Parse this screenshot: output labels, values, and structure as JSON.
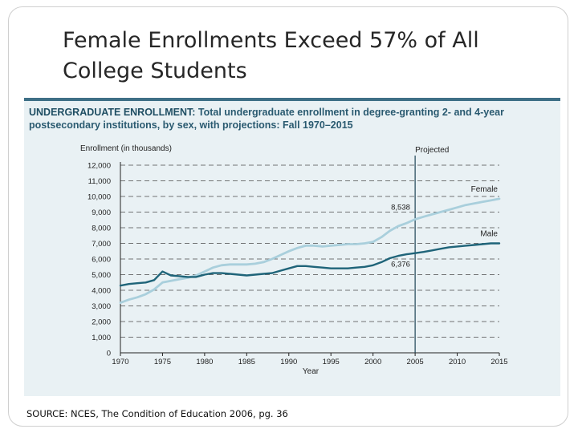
{
  "slide": {
    "title": "Female Enrollments Exceed 57% of All College Students",
    "source": "SOURCE: NCES, The Condition of Education 2006, pg. 36"
  },
  "colors": {
    "female": "#a9cfdc",
    "male": "#1f6479",
    "panel": "#e9f1f4",
    "heading": "#2a5a70"
  },
  "chart_data": {
    "type": "line",
    "heading_lead": "UNDERGRADUATE ENROLLMENT:",
    "heading_rest": "Total undergraduate enrollment in degree-granting 2- and 4-year postsecondary institutions, by sex, with projections: Fall 1970–2015",
    "ylabel": "Enrollment (in thousands)",
    "xlabel": "Year",
    "ylim": [
      0,
      12000
    ],
    "xlim": [
      1970,
      2015
    ],
    "x_ticks": [
      "1970",
      "1975",
      "1980",
      "1985",
      "1990",
      "1995",
      "2000",
      "2005",
      "2010",
      "2015"
    ],
    "y_ticks": [
      "0",
      "1,000",
      "2,000",
      "3,000",
      "4,000",
      "5,000",
      "6,000",
      "7,000",
      "8,000",
      "9,000",
      "10,000",
      "11,000",
      "12,000"
    ],
    "grid": "horizontal dashed",
    "projection": {
      "start_year": 2005,
      "label": "Projected"
    },
    "annotations": {
      "female_2005": "8,538",
      "male_2005": "6,376"
    },
    "x": [
      1970,
      1971,
      1972,
      1973,
      1974,
      1975,
      1976,
      1977,
      1978,
      1979,
      1980,
      1981,
      1982,
      1983,
      1984,
      1985,
      1986,
      1987,
      1988,
      1989,
      1990,
      1991,
      1992,
      1993,
      1994,
      1995,
      1996,
      1997,
      1998,
      1999,
      2000,
      2001,
      2002,
      2003,
      2004,
      2005,
      2006,
      2007,
      2008,
      2009,
      2010,
      2011,
      2012,
      2013,
      2014,
      2015
    ],
    "series": [
      {
        "name": "Female",
        "values": [
          3200,
          3400,
          3550,
          3750,
          4050,
          4500,
          4600,
          4700,
          4800,
          4950,
          5200,
          5450,
          5600,
          5650,
          5650,
          5650,
          5700,
          5800,
          6000,
          6250,
          6500,
          6700,
          6850,
          6850,
          6800,
          6850,
          6900,
          6950,
          6950,
          7000,
          7100,
          7400,
          7800,
          8100,
          8300,
          8538,
          8700,
          8850,
          9000,
          9150,
          9300,
          9450,
          9550,
          9650,
          9750,
          9850
        ]
      },
      {
        "name": "Male",
        "values": [
          4300,
          4400,
          4450,
          4500,
          4650,
          5200,
          4950,
          4900,
          4850,
          4850,
          5000,
          5100,
          5100,
          5050,
          5000,
          4950,
          5000,
          5050,
          5100,
          5250,
          5400,
          5550,
          5550,
          5500,
          5450,
          5400,
          5400,
          5400,
          5450,
          5500,
          5600,
          5800,
          6050,
          6200,
          6300,
          6376,
          6450,
          6550,
          6650,
          6750,
          6800,
          6850,
          6900,
          6950,
          7000,
          7000
        ]
      }
    ]
  }
}
